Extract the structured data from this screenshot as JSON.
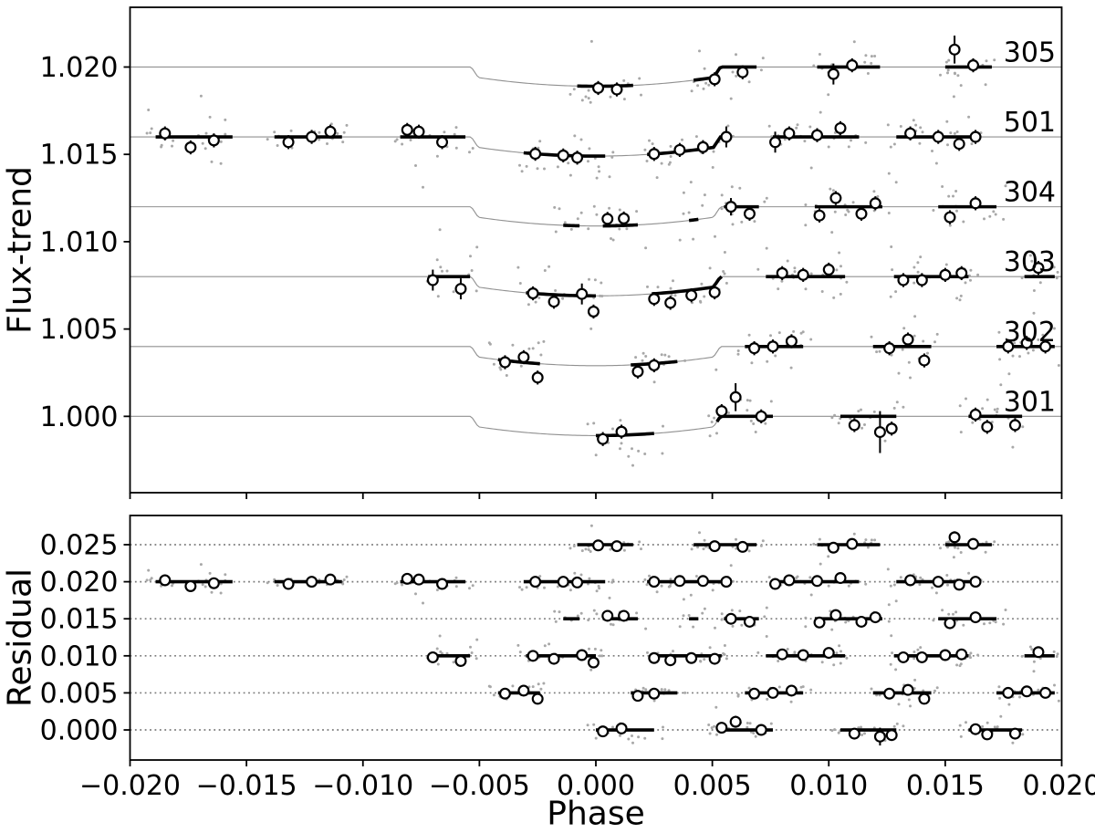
{
  "chart_data": {
    "type": "scatter",
    "description": "Phase-folded transit light curves (flux minus trend) for six data sets with vertical offsets, binned points, transit model, and residuals panel",
    "panels": [
      {
        "id": "flux",
        "ylabel": "Flux-trend",
        "xlim": [
          -0.02,
          0.02
        ],
        "ylim": [
          0.99563,
          1.02342
        ],
        "yticks": [
          {
            "v": 1.0,
            "label": "1.000"
          },
          {
            "v": 1.005,
            "label": "1.005"
          },
          {
            "v": 1.01,
            "label": "1.010"
          },
          {
            "v": 1.015,
            "label": "1.015"
          },
          {
            "v": 1.02,
            "label": "1.020"
          }
        ],
        "xticks": [
          -0.02,
          -0.015,
          -0.01,
          -0.005,
          0.0,
          0.005,
          0.01,
          0.015,
          0.02
        ],
        "xtick_labels": null,
        "grid": "none"
      },
      {
        "id": "residual",
        "ylabel": "Residual",
        "xlabel": "Phase",
        "xlim": [
          -0.02,
          0.02
        ],
        "ylim": [
          -0.00406,
          0.02894
        ],
        "yticks": [
          {
            "v": 0.0,
            "label": "0.000"
          },
          {
            "v": 0.005,
            "label": "0.005"
          },
          {
            "v": 0.01,
            "label": "0.010"
          },
          {
            "v": 0.015,
            "label": "0.015"
          },
          {
            "v": 0.02,
            "label": "0.020"
          },
          {
            "v": 0.025,
            "label": "0.025"
          }
        ],
        "xticks": [
          -0.02,
          -0.015,
          -0.01,
          -0.005,
          0.0,
          0.005,
          0.01,
          0.015,
          0.02
        ],
        "xtick_labels": [
          "−0.020",
          "−0.015",
          "−0.010",
          "−0.005",
          "0.000",
          "0.005",
          "0.010",
          "0.015",
          "0.020"
        ],
        "grid": "dotted"
      }
    ],
    "transit_model": {
      "t_total": 0.00535,
      "t_inner": 0.00505,
      "depth_edge": 0.0006,
      "depth_center": 0.0011
    },
    "series": [
      {
        "label": "305",
        "flux_offset": 1.02,
        "residual_offset": 0.025,
        "chunks": [
          {
            "x0": -0.0008,
            "x1": 0.0016,
            "points": [
              {
                "x": 0.0001,
                "d": -0.0001
              },
              {
                "x": 0.0009,
                "d": -0.0002
              }
            ]
          },
          {
            "x0": 0.0042,
            "x1": 0.0069,
            "points": [
              {
                "x": 0.0051,
                "d": -0.0002
              },
              {
                "x": 0.0063,
                "d": -0.0003
              }
            ]
          },
          {
            "x0": 0.0095,
            "x1": 0.0122,
            "points": [
              {
                "x": 0.0102,
                "d": -0.0004,
                "err": 0.0006
              },
              {
                "x": 0.011,
                "d": 0.0001
              }
            ]
          },
          {
            "x0": 0.015,
            "x1": 0.017,
            "points": [
              {
                "x": 0.0154,
                "d": 0.001,
                "err": 0.0008
              },
              {
                "x": 0.0162,
                "d": 0.0001
              }
            ]
          }
        ]
      },
      {
        "label": "501",
        "flux_offset": 1.016,
        "residual_offset": 0.02,
        "chunks": [
          {
            "x0": -0.0189,
            "x1": -0.0156,
            "points": [
              {
                "x": -0.0185,
                "d": 0.0002
              },
              {
                "x": -0.0174,
                "d": -0.0006
              },
              {
                "x": -0.0164,
                "d": -0.0002
              }
            ]
          },
          {
            "x0": -0.0138,
            "x1": -0.0109,
            "points": [
              {
                "x": -0.0132,
                "d": -0.0003
              },
              {
                "x": -0.0122,
                "d": 0.0
              },
              {
                "x": -0.0114,
                "d": 0.0003
              }
            ]
          },
          {
            "x0": -0.0084,
            "x1": -0.0056,
            "points": [
              {
                "x": -0.0081,
                "d": 0.0004
              },
              {
                "x": -0.0076,
                "d": 0.0003
              },
              {
                "x": -0.0066,
                "d": -0.0003
              }
            ]
          },
          {
            "x0": -0.0031,
            "x1": 0.0004,
            "points": [
              {
                "x": -0.0026,
                "d": 0.0
              },
              {
                "x": -0.0014,
                "d": 0.0
              },
              {
                "x": -0.0008,
                "d": -0.0001
              }
            ]
          },
          {
            "x0": 0.0022,
            "x1": 0.0058,
            "points": [
              {
                "x": 0.0025,
                "d": 0.0
              },
              {
                "x": 0.0036,
                "d": 0.0001
              },
              {
                "x": 0.0046,
                "d": 0.0001
              },
              {
                "x": 0.0056,
                "d": 0.0,
                "err": 0.0006
              }
            ]
          },
          {
            "x0": 0.0076,
            "x1": 0.0113,
            "points": [
              {
                "x": 0.0077,
                "d": -0.0003,
                "err": 0.0006
              },
              {
                "x": 0.0083,
                "d": 0.0002
              },
              {
                "x": 0.0095,
                "d": 0.0001
              },
              {
                "x": 0.0105,
                "d": 0.0005
              }
            ]
          },
          {
            "x0": 0.0129,
            "x1": 0.0165,
            "points": [
              {
                "x": 0.0135,
                "d": 0.0002
              },
              {
                "x": 0.0147,
                "d": 0.0
              },
              {
                "x": 0.0156,
                "d": -0.0004
              },
              {
                "x": 0.0163,
                "d": 0.0
              }
            ]
          }
        ]
      },
      {
        "label": "304",
        "flux_offset": 1.012,
        "residual_offset": 0.015,
        "chunks": [
          {
            "x0": -0.0014,
            "x1": -0.0007,
            "points": []
          },
          {
            "x0": 0.0003,
            "x1": 0.0018,
            "points": [
              {
                "x": 0.0005,
                "d": 0.0004
              },
              {
                "x": 0.0012,
                "d": 0.0004
              }
            ]
          },
          {
            "x0": 0.004,
            "x1": 0.0044,
            "points": []
          },
          {
            "x0": 0.0055,
            "x1": 0.007,
            "points": [
              {
                "x": 0.0058,
                "d": 0.0,
                "err": 0.0005
              },
              {
                "x": 0.0066,
                "d": -0.0004
              }
            ]
          },
          {
            "x0": 0.0094,
            "x1": 0.0123,
            "points": [
              {
                "x": 0.0096,
                "d": -0.0005
              },
              {
                "x": 0.0103,
                "d": 0.0005
              },
              {
                "x": 0.0114,
                "d": -0.0004
              },
              {
                "x": 0.012,
                "d": 0.0002
              }
            ]
          },
          {
            "x0": 0.0147,
            "x1": 0.0172,
            "points": [
              {
                "x": 0.0152,
                "d": -0.0006
              },
              {
                "x": 0.0163,
                "d": 0.0002
              }
            ]
          }
        ]
      },
      {
        "label": "303",
        "flux_offset": 1.008,
        "residual_offset": 0.01,
        "chunks": [
          {
            "x0": -0.0072,
            "x1": -0.0054,
            "points": [
              {
                "x": -0.007,
                "d": -0.0002,
                "err": 0.0006
              },
              {
                "x": -0.0058,
                "d": -0.0007,
                "err": 0.0006
              }
            ]
          },
          {
            "x0": -0.003,
            "x1": 0.0,
            "points": [
              {
                "x": -0.0027,
                "d": 0.0
              },
              {
                "x": -0.0018,
                "d": -0.0004
              },
              {
                "x": -0.0006,
                "d": 0.0001,
                "err": 0.0006
              },
              {
                "x": -0.0001,
                "d": -0.0009
              }
            ]
          },
          {
            "x0": 0.0024,
            "x1": 0.0054,
            "points": [
              {
                "x": 0.0025,
                "d": -0.0003
              },
              {
                "x": 0.0032,
                "d": -0.0006
              },
              {
                "x": 0.0041,
                "d": -0.0003
              },
              {
                "x": 0.0051,
                "d": -0.0004
              }
            ]
          },
          {
            "x0": 0.0073,
            "x1": 0.0107,
            "points": [
              {
                "x": 0.008,
                "d": 0.0002
              },
              {
                "x": 0.0089,
                "d": 0.0001
              },
              {
                "x": 0.01,
                "d": 0.0004
              }
            ]
          },
          {
            "x0": 0.0128,
            "x1": 0.016,
            "points": [
              {
                "x": 0.0132,
                "d": -0.0002
              },
              {
                "x": 0.014,
                "d": -0.0002
              },
              {
                "x": 0.015,
                "d": 0.0001
              },
              {
                "x": 0.0157,
                "d": 0.0002
              }
            ]
          },
          {
            "x0": 0.0184,
            "x1": 0.0197,
            "points": [
              {
                "x": 0.019,
                "d": 0.0005
              }
            ]
          }
        ]
      },
      {
        "label": "302",
        "flux_offset": 1.004,
        "residual_offset": 0.005,
        "chunks": [
          {
            "x0": -0.0042,
            "x1": -0.0024,
            "points": [
              {
                "x": -0.0039,
                "d": -0.0001
              },
              {
                "x": -0.0031,
                "d": 0.0003
              },
              {
                "x": -0.0025,
                "d": -0.0008
              }
            ]
          },
          {
            "x0": 0.0015,
            "x1": 0.0035,
            "points": [
              {
                "x": 0.0018,
                "d": -0.0004
              },
              {
                "x": 0.0025,
                "d": -0.0001
              }
            ]
          },
          {
            "x0": 0.0064,
            "x1": 0.0089,
            "points": [
              {
                "x": 0.0068,
                "d": -0.0001
              },
              {
                "x": 0.0076,
                "d": 0.0
              },
              {
                "x": 0.0084,
                "d": 0.0003
              }
            ]
          },
          {
            "x0": 0.0119,
            "x1": 0.0144,
            "points": [
              {
                "x": 0.0126,
                "d": -0.0001
              },
              {
                "x": 0.0134,
                "d": 0.0004
              },
              {
                "x": 0.0141,
                "d": -0.0008
              }
            ]
          },
          {
            "x0": 0.0172,
            "x1": 0.0197,
            "points": [
              {
                "x": 0.0177,
                "d": 0.0
              },
              {
                "x": 0.0185,
                "d": 0.0002
              },
              {
                "x": 0.0193,
                "d": 0.0
              }
            ]
          }
        ]
      },
      {
        "label": "301",
        "flux_offset": 1.0,
        "residual_offset": 0.0,
        "chunks": [
          {
            "x0": 0.0,
            "x1": 0.0025,
            "points": [
              {
                "x": 0.0003,
                "d": -0.0002
              },
              {
                "x": 0.0011,
                "d": 0.0002
              }
            ]
          },
          {
            "x0": 0.0052,
            "x1": 0.0076,
            "points": [
              {
                "x": 0.0054,
                "d": 0.0003
              },
              {
                "x": 0.006,
                "d": 0.0011,
                "err": 0.0008
              },
              {
                "x": 0.0071,
                "d": 0.0
              }
            ]
          },
          {
            "x0": 0.0105,
            "x1": 0.0129,
            "points": [
              {
                "x": 0.0111,
                "d": -0.0005
              },
              {
                "x": 0.0122,
                "d": -0.0009,
                "err": 0.0012
              },
              {
                "x": 0.0127,
                "d": -0.0007
              }
            ]
          },
          {
            "x0": 0.016,
            "x1": 0.0183,
            "points": [
              {
                "x": 0.0163,
                "d": 0.0001
              },
              {
                "x": 0.0168,
                "d": -0.0006
              },
              {
                "x": 0.018,
                "d": -0.0005
              }
            ]
          }
        ]
      }
    ],
    "raw_scatter": {
      "sigma": 0.0006,
      "outlier_frac": 0.16,
      "outlier_scale": 2.3,
      "x_pad": 0.0004,
      "density": 0.00019,
      "max_per_chunk": 24,
      "seed": 11
    },
    "binned_style": {
      "default_err": 0.0004
    },
    "style": {
      "model_line_color": "#909090",
      "raw_dot_color": "#a8a8a8",
      "marker_face": "#ffffff",
      "marker_edge": "#000000",
      "segment_color": "#000000",
      "grid_color": "#7a7a7a",
      "spine_color": "#000000",
      "text_color": "#000000",
      "background": "#ffffff"
    }
  }
}
